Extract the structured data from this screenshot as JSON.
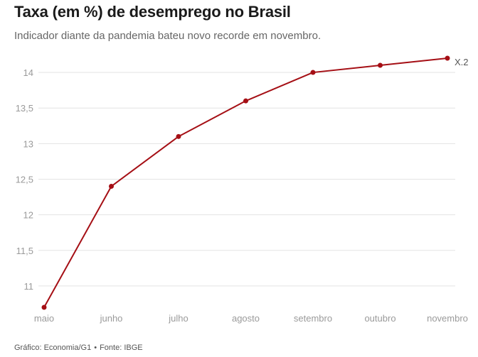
{
  "chart_data": {
    "type": "line",
    "title": "Taxa (em %) de desemprego no Brasil",
    "subtitle": "Indicador diante da pandemia bateu novo recorde em novembro.",
    "categories": [
      "maio",
      "junho",
      "julho",
      "agosto",
      "setembro",
      "outubro",
      "novembro"
    ],
    "series": [
      {
        "name": "X.2",
        "values": [
          10.7,
          12.4,
          13.1,
          13.6,
          14.0,
          14.1,
          14.2
        ]
      }
    ],
    "yticks": [
      "11",
      "11,5",
      "12",
      "12,5",
      "13",
      "13,5",
      "14"
    ],
    "ylim": [
      10.7,
      14.2
    ],
    "xlabel": "",
    "ylabel": "",
    "grid": true,
    "line_color": "#a50f15",
    "series_label_color": "#555555"
  },
  "footer": {
    "credit": "Gráfico: Economia/G1",
    "separator": "•",
    "source": "Fonte: IBGE"
  }
}
